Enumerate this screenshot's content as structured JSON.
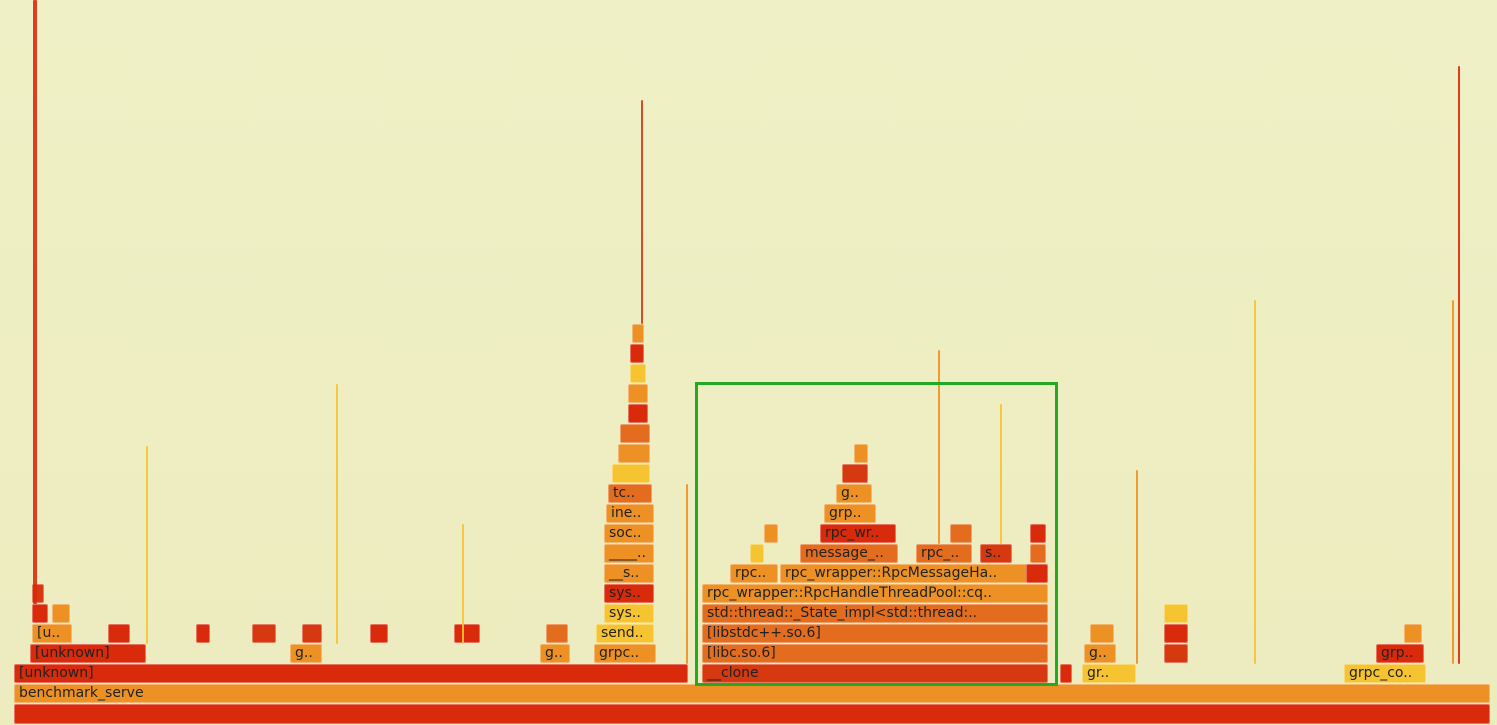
{
  "colors": {
    "background": "#eeeec2",
    "red": "#d92a0c",
    "red_dark": "#d6390f",
    "orange": "#ed9125",
    "orange_dark": "#e46c1e",
    "yellow": "#f6c331",
    "highlight": "#22aa22"
  },
  "flamegraph": {
    "root_label": "",
    "level1": {
      "benchmark_serve": "benchmark_serve"
    },
    "level2": {
      "unknown_main": "[unknown]",
      "clone": "__clone",
      "gr_right": "gr..",
      "grpc_co_right": "grpc_co.."
    },
    "level3": {
      "unknown_a": "[unknown]",
      "g_a": "g..",
      "g_b": "g..",
      "grpc_a": "grpc..",
      "libc": "[libc.so.6]",
      "g_right": "g..",
      "grp_right": "grp.."
    },
    "level4": {
      "u_a": "[u..",
      "send": "send..",
      "libstdcpp": "[libstdc++.so.6]"
    },
    "level5": {
      "sys_a": "sys..",
      "std_thread": "std::thread::_State_impl<std::thread:.."
    },
    "level6": {
      "sys_b": "sys..",
      "rpc_pool": "rpc_wrapper::RpcHandleThreadPool::cq.."
    },
    "level7": {
      "s_a": "__s..",
      "rpc_a": "rpc..",
      "rpc_msg_handler": "rpc_wrapper::RpcMessageHa.."
    },
    "level8": {
      "underscore": "____..",
      "message": "message_..",
      "rpc_b": "rpc_..",
      "s_b": "s.."
    },
    "level9": {
      "soc": "soc..",
      "rpc_wr": "rpc_wr.."
    },
    "level10": {
      "ine": "ine..",
      "grp_mid": "grp.."
    },
    "level11": {
      "tc": "tc..",
      "g_mid": "g.."
    }
  }
}
